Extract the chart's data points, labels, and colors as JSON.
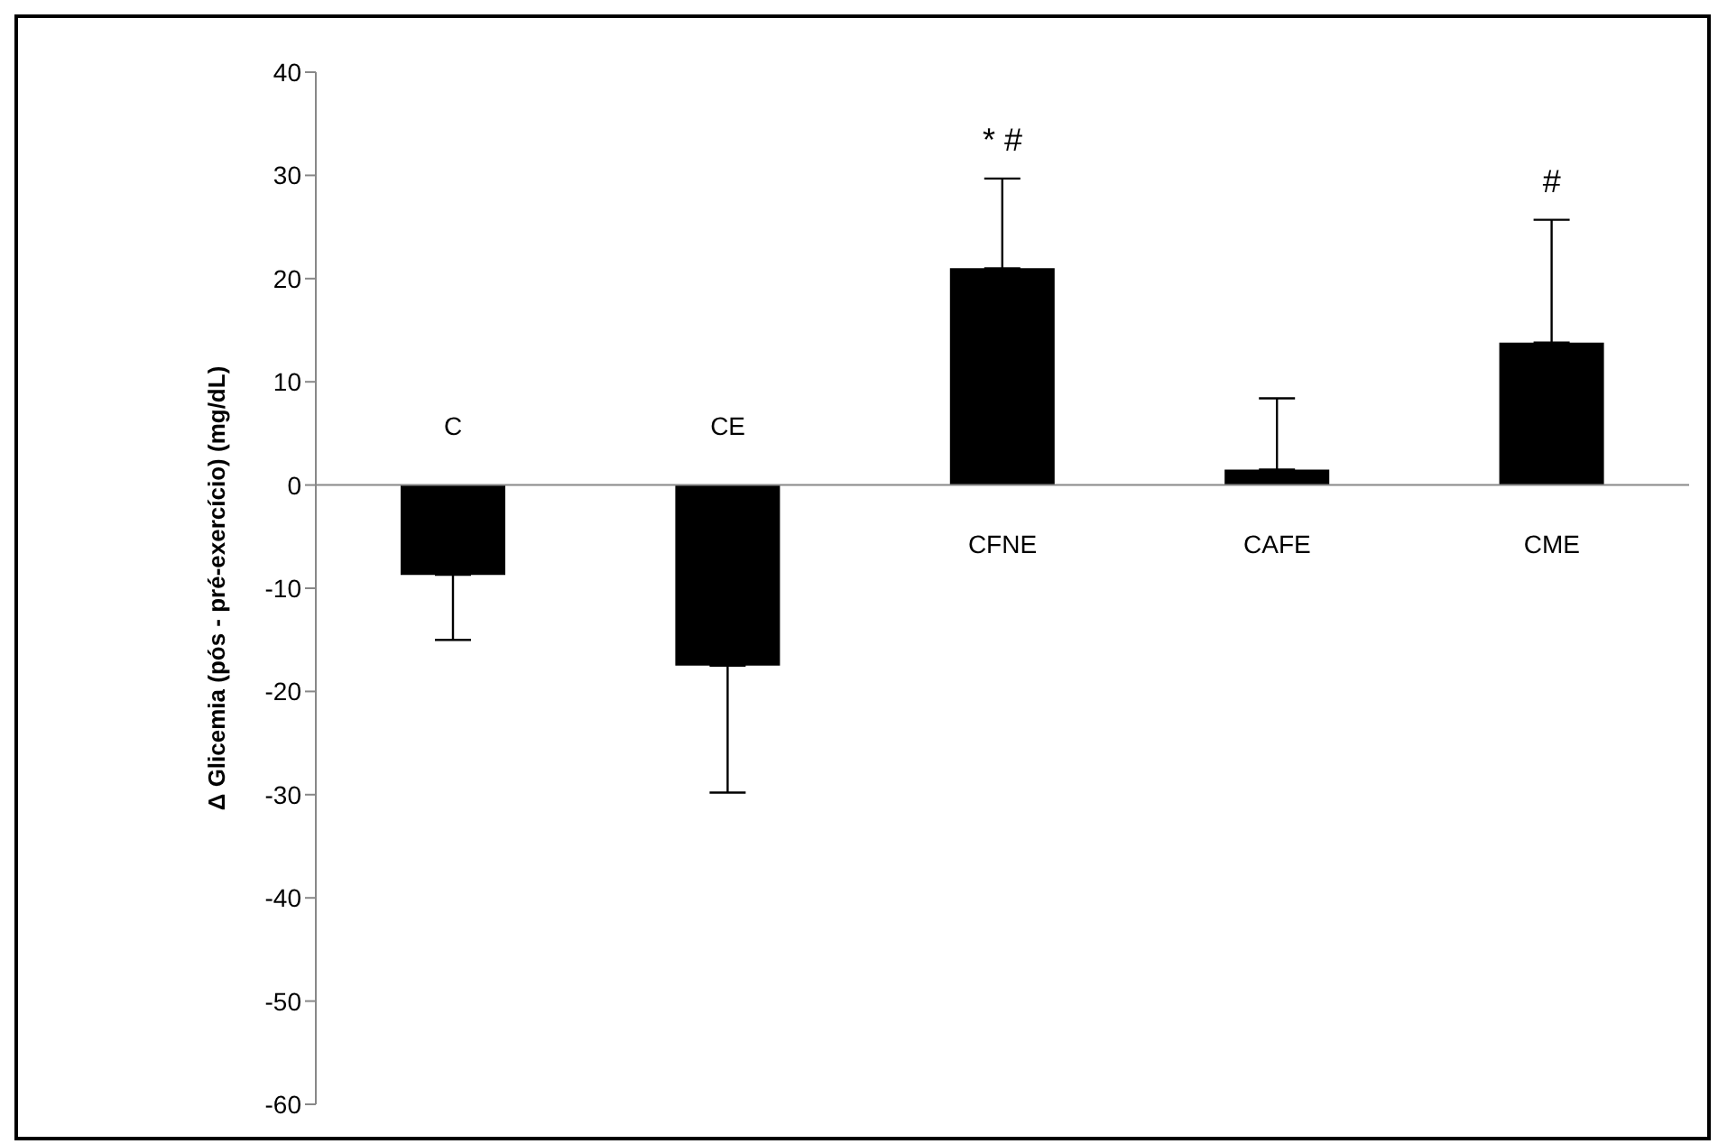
{
  "chart_data": {
    "type": "bar",
    "ylabel": "Δ Glicemia  (pós - pré-exercício) (mg/dL)",
    "categories": [
      "C",
      "CE",
      "CFNE",
      "CAFE",
      "CME"
    ],
    "values": [
      -8.7,
      -17.5,
      21,
      1.5,
      13.8
    ],
    "errors": [
      [
        -15,
        -8.7
      ],
      [
        -29.8,
        -17.5
      ],
      [
        21,
        29.7
      ],
      [
        1.5,
        8.4
      ],
      [
        13.8,
        25.7
      ]
    ],
    "color": "#000000",
    "ylim": [
      -60,
      40
    ],
    "yticks": [
      -60,
      -50,
      -40,
      -30,
      -20,
      -10,
      0,
      10,
      20,
      30,
      40
    ],
    "grid": false,
    "annotations": [
      "* #",
      "#"
    ]
  }
}
